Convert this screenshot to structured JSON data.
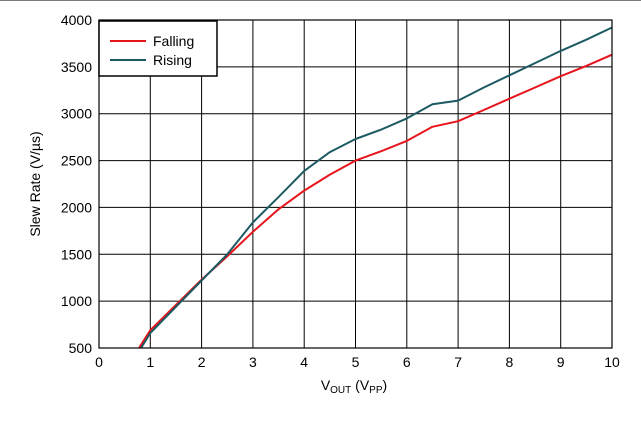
{
  "chart_data": {
    "type": "line",
    "title": "",
    "xlabel": {
      "main": "V",
      "main_sub": "OUT",
      "unit": "V",
      "unit_sub": "PP"
    },
    "ylabel": "Slew Rate (V/µs)",
    "xlim": [
      0,
      10
    ],
    "ylim": [
      500,
      4000
    ],
    "xticks": [
      0,
      1,
      2,
      3,
      4,
      5,
      6,
      7,
      8,
      9,
      10
    ],
    "yticks": [
      500,
      1000,
      1500,
      2000,
      2500,
      3000,
      3500,
      4000
    ],
    "grid": true,
    "legend_position": "top-left",
    "series": [
      {
        "name": "Falling",
        "color": "#e8141c",
        "x": [
          0.78,
          1.0,
          1.5,
          2.0,
          2.5,
          3.0,
          3.5,
          4.0,
          4.5,
          5.0,
          5.5,
          6.0,
          6.5,
          7.0,
          7.5,
          8.0,
          8.5,
          9.0,
          9.5,
          10.0
        ],
        "y": [
          500,
          690,
          960,
          1230,
          1480,
          1740,
          1980,
          2180,
          2350,
          2500,
          2600,
          2710,
          2860,
          2920,
          3040,
          3160,
          3280,
          3400,
          3510,
          3630
        ]
      },
      {
        "name": "Rising",
        "color": "#1c5a64",
        "x": [
          0.82,
          1.0,
          1.5,
          2.0,
          2.5,
          3.0,
          3.5,
          4.0,
          4.5,
          5.0,
          5.5,
          6.0,
          6.5,
          7.0,
          7.5,
          8.0,
          8.5,
          9.0,
          9.5,
          10.0
        ],
        "y": [
          500,
          660,
          940,
          1220,
          1500,
          1840,
          2110,
          2390,
          2590,
          2730,
          2830,
          2950,
          3100,
          3140,
          3280,
          3410,
          3540,
          3670,
          3790,
          3920
        ]
      }
    ]
  }
}
